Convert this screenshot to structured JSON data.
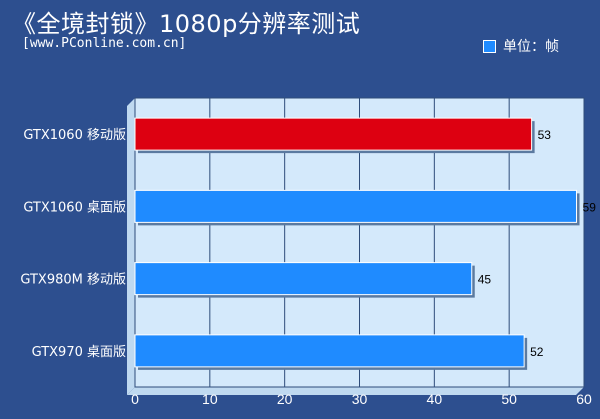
{
  "chart_data": {
    "type": "bar",
    "orientation": "horizontal",
    "title": "《全境封锁》1080p分辨率测试",
    "subtitle": "[www.PConline.com.cn]",
    "legend": {
      "label": "单位：帧",
      "position": "top-right"
    },
    "categories": [
      "GTX1060 移动版",
      "GTX1060 桌面版",
      "GTX980M 移动版",
      "GTX970 桌面版"
    ],
    "values": [
      53,
      59,
      45,
      52
    ],
    "bar_colors": [
      "#dd0011",
      "#1f8bff",
      "#1f8bff",
      "#1f8bff"
    ],
    "xlim": [
      0,
      60
    ],
    "xticks": [
      0,
      10,
      20,
      30,
      40,
      50,
      60
    ],
    "grid": true,
    "xlabel": "",
    "ylabel": ""
  }
}
